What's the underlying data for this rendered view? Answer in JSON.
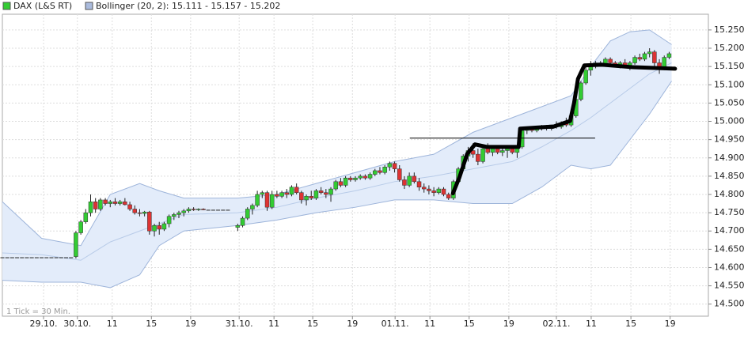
{
  "chart_data": {
    "type": "candlestick",
    "legend": [
      {
        "name": "DAX (L&S RT)",
        "color": "#33cc33"
      },
      {
        "name": "Bollinger (20, 2): 15.111 - 15.157 - 15.202",
        "color": "#aabbdd"
      }
    ],
    "note": "1 Tick = 30 Min.",
    "ylim": [
      14.467,
      15.293
    ],
    "yticks": [
      {
        "value": 14.5,
        "label": "14.500"
      },
      {
        "value": 14.55,
        "label": "14.550"
      },
      {
        "value": 14.6,
        "label": "14.600"
      },
      {
        "value": 14.65,
        "label": "14.650"
      },
      {
        "value": 14.7,
        "label": "14.700"
      },
      {
        "value": 14.75,
        "label": "14.750"
      },
      {
        "value": 14.8,
        "label": "14.800"
      },
      {
        "value": 14.85,
        "label": "14.850"
      },
      {
        "value": 14.9,
        "label": "14.900"
      },
      {
        "value": 14.95,
        "label": "14.950"
      },
      {
        "value": 15.0,
        "label": "15.000"
      },
      {
        "value": 15.05,
        "label": "15.050"
      },
      {
        "value": 15.1,
        "label": "15.100"
      },
      {
        "value": 15.15,
        "label": "15.150"
      },
      {
        "value": 15.2,
        "label": "15.200"
      },
      {
        "value": 15.25,
        "label": "15.250"
      }
    ],
    "xlim": [
      0,
      144
    ],
    "xticks": [
      {
        "value": 8.4,
        "label": "29.10."
      },
      {
        "value": 15.3,
        "label": "30.10."
      },
      {
        "value": 22.4,
        "label": "11"
      },
      {
        "value": 30.4,
        "label": "15"
      },
      {
        "value": 38.4,
        "label": "19"
      },
      {
        "value": 48.3,
        "label": "31.10."
      },
      {
        "value": 55.4,
        "label": "11"
      },
      {
        "value": 63.3,
        "label": "15"
      },
      {
        "value": 71.4,
        "label": "19"
      },
      {
        "value": 80.1,
        "label": "01.11."
      },
      {
        "value": 87.2,
        "label": "11"
      },
      {
        "value": 95.2,
        "label": "15"
      },
      {
        "value": 103.3,
        "label": "19"
      },
      {
        "value": 113,
        "label": "02.11."
      },
      {
        "value": 120.1,
        "label": "11"
      },
      {
        "value": 128.2,
        "label": "15"
      },
      {
        "value": 136.2,
        "label": "19"
      }
    ],
    "grid": true,
    "up_color": "#33cc33",
    "down_color": "#dd3333",
    "candles": {
      "x": [
        0,
        1,
        2,
        3,
        4,
        5,
        6,
        7,
        8,
        9,
        10,
        11,
        12,
        13,
        14,
        15,
        16,
        17,
        18,
        19,
        20,
        21,
        22,
        23,
        24,
        25,
        26,
        27,
        28,
        29,
        30,
        31,
        32,
        33,
        34,
        35,
        36,
        37,
        38,
        39,
        40,
        41,
        42,
        43,
        44,
        45,
        46,
        48,
        49,
        50,
        51,
        52,
        53,
        54,
        55,
        56,
        57,
        58,
        59,
        60,
        61,
        62,
        63,
        64,
        65,
        66,
        67,
        68,
        69,
        70,
        71,
        72,
        73,
        74,
        75,
        76,
        77,
        78,
        79,
        80,
        81,
        82,
        83,
        84,
        85,
        86,
        87,
        88,
        89,
        90,
        91,
        92,
        93,
        94,
        95,
        96,
        97,
        98,
        99,
        100,
        101,
        102,
        103,
        104,
        105,
        106,
        107,
        108,
        109,
        110,
        111,
        112,
        113,
        114,
        115,
        116,
        117,
        118,
        119,
        120,
        121,
        122,
        123,
        124,
        125,
        126,
        127,
        128,
        129,
        130,
        131,
        132,
        133,
        134,
        135,
        136
      ],
      "open": [
        14.628,
        14.628,
        14.628,
        14.628,
        14.628,
        14.628,
        14.628,
        14.628,
        14.628,
        14.628,
        14.628,
        14.628,
        14.628,
        14.628,
        14.628,
        14.63,
        14.695,
        14.725,
        14.75,
        14.78,
        14.76,
        14.785,
        14.775,
        14.78,
        14.775,
        14.78,
        14.772,
        14.76,
        14.75,
        14.748,
        14.752,
        14.7,
        14.715,
        14.705,
        14.72,
        14.74,
        14.745,
        14.75,
        14.755,
        14.76,
        14.758,
        14.76,
        14.758,
        14.758,
        14.758,
        14.758,
        14.758,
        14.71,
        14.715,
        14.735,
        14.76,
        14.77,
        14.8,
        14.805,
        14.765,
        14.8,
        14.795,
        14.805,
        14.8,
        14.82,
        14.805,
        14.785,
        14.795,
        14.79,
        14.81,
        14.805,
        14.8,
        14.815,
        14.835,
        14.825,
        14.845,
        14.84,
        14.845,
        14.85,
        14.845,
        14.855,
        14.865,
        14.86,
        14.875,
        14.885,
        14.87,
        14.84,
        14.825,
        14.85,
        14.835,
        14.82,
        14.815,
        14.81,
        14.805,
        14.815,
        14.8,
        14.79,
        14.835,
        14.87,
        14.905,
        14.92,
        14.91,
        14.89,
        14.925,
        14.915,
        14.925,
        14.915,
        14.92,
        14.925,
        14.915,
        14.93,
        14.975,
        14.98,
        14.975,
        14.98,
        14.985,
        14.98,
        14.99,
        14.985,
        14.995,
        14.99,
        15.015,
        15.06,
        15.105,
        15.14,
        15.155,
        15.16,
        15.155,
        15.17,
        15.16,
        15.155,
        15.16,
        15.15,
        15.16,
        15.175,
        15.17,
        15.185,
        15.19,
        15.16,
        15.145,
        15.175
      ],
      "high": [
        14.628,
        14.628,
        14.628,
        14.628,
        14.628,
        14.628,
        14.628,
        14.628,
        14.628,
        14.628,
        14.628,
        14.628,
        14.628,
        14.628,
        14.628,
        14.7,
        14.73,
        14.76,
        14.8,
        14.79,
        14.79,
        14.79,
        14.785,
        14.79,
        14.785,
        14.79,
        14.78,
        14.77,
        14.76,
        14.755,
        14.755,
        14.72,
        14.725,
        14.725,
        14.745,
        14.75,
        14.755,
        14.76,
        14.765,
        14.765,
        14.762,
        14.762,
        14.758,
        14.758,
        14.758,
        14.758,
        14.758,
        14.72,
        14.74,
        14.765,
        14.775,
        14.81,
        14.81,
        14.81,
        14.81,
        14.81,
        14.81,
        14.815,
        14.825,
        14.83,
        14.81,
        14.8,
        14.81,
        14.815,
        14.82,
        14.815,
        14.82,
        14.84,
        14.845,
        14.85,
        14.85,
        14.85,
        14.855,
        14.855,
        14.86,
        14.87,
        14.875,
        14.88,
        14.89,
        14.89,
        14.88,
        14.85,
        14.86,
        14.86,
        14.845,
        14.83,
        14.825,
        14.82,
        14.82,
        14.82,
        14.805,
        14.84,
        14.875,
        14.91,
        14.93,
        14.94,
        14.925,
        14.93,
        14.94,
        14.93,
        14.935,
        14.93,
        14.925,
        14.93,
        14.935,
        14.98,
        14.985,
        14.985,
        14.985,
        14.99,
        14.99,
        14.99,
        15.0,
        15.0,
        15.01,
        15.02,
        15.07,
        15.11,
        15.15,
        15.165,
        15.165,
        15.165,
        15.175,
        15.175,
        15.165,
        15.165,
        15.17,
        15.165,
        15.18,
        15.185,
        15.19,
        15.2,
        15.195,
        15.17,
        15.18,
        15.19
      ],
      "low": [
        14.628,
        14.628,
        14.628,
        14.628,
        14.628,
        14.628,
        14.628,
        14.628,
        14.628,
        14.628,
        14.628,
        14.628,
        14.628,
        14.628,
        14.628,
        14.625,
        14.69,
        14.72,
        14.74,
        14.75,
        14.755,
        14.77,
        14.765,
        14.77,
        14.77,
        14.77,
        14.755,
        14.745,
        14.74,
        14.74,
        14.69,
        14.685,
        14.69,
        14.7,
        14.71,
        14.73,
        14.735,
        14.74,
        14.75,
        14.755,
        14.755,
        14.757,
        14.758,
        14.758,
        14.758,
        14.758,
        14.758,
        14.7,
        14.71,
        14.73,
        14.745,
        14.765,
        14.79,
        14.755,
        14.76,
        14.79,
        14.79,
        14.79,
        14.795,
        14.8,
        14.775,
        14.77,
        14.785,
        14.785,
        14.8,
        14.79,
        14.78,
        14.81,
        14.82,
        14.82,
        14.835,
        14.835,
        14.84,
        14.84,
        14.84,
        14.85,
        14.855,
        14.855,
        14.865,
        14.86,
        14.835,
        14.815,
        14.82,
        14.83,
        14.81,
        14.805,
        14.8,
        14.795,
        14.8,
        14.795,
        14.785,
        14.785,
        14.83,
        14.865,
        14.89,
        14.9,
        14.88,
        14.885,
        14.91,
        14.905,
        14.91,
        14.905,
        14.9,
        14.91,
        14.9,
        14.925,
        14.965,
        14.97,
        14.97,
        14.975,
        14.975,
        14.975,
        14.98,
        14.98,
        14.985,
        14.985,
        15.01,
        15.055,
        15.1,
        15.125,
        15.145,
        15.15,
        15.15,
        15.155,
        15.15,
        15.145,
        15.145,
        15.14,
        15.155,
        15.165,
        15.165,
        15.175,
        15.15,
        15.13,
        15.14,
        15.17
      ],
      "close": [
        14.628,
        14.628,
        14.628,
        14.628,
        14.628,
        14.628,
        14.628,
        14.628,
        14.628,
        14.628,
        14.628,
        14.628,
        14.628,
        14.628,
        14.628,
        14.695,
        14.725,
        14.75,
        14.78,
        14.76,
        14.785,
        14.775,
        14.78,
        14.775,
        14.78,
        14.772,
        14.76,
        14.75,
        14.748,
        14.752,
        14.7,
        14.715,
        14.705,
        14.72,
        14.74,
        14.745,
        14.75,
        14.755,
        14.76,
        14.758,
        14.76,
        14.758,
        14.758,
        14.758,
        14.758,
        14.758,
        14.758,
        14.715,
        14.735,
        14.76,
        14.77,
        14.8,
        14.805,
        14.765,
        14.8,
        14.795,
        14.805,
        14.8,
        14.82,
        14.805,
        14.785,
        14.795,
        14.79,
        14.81,
        14.805,
        14.8,
        14.815,
        14.835,
        14.825,
        14.845,
        14.84,
        14.845,
        14.85,
        14.845,
        14.855,
        14.865,
        14.86,
        14.875,
        14.885,
        14.87,
        14.84,
        14.825,
        14.85,
        14.835,
        14.82,
        14.815,
        14.81,
        14.805,
        14.815,
        14.8,
        14.79,
        14.835,
        14.87,
        14.905,
        14.92,
        14.91,
        14.89,
        14.925,
        14.915,
        14.925,
        14.915,
        14.92,
        14.925,
        14.915,
        14.93,
        14.975,
        14.98,
        14.975,
        14.98,
        14.985,
        14.98,
        14.99,
        14.985,
        14.995,
        14.99,
        15.015,
        15.06,
        15.105,
        15.14,
        15.155,
        15.16,
        15.155,
        15.17,
        15.16,
        15.155,
        15.16,
        15.15,
        15.16,
        15.175,
        15.17,
        15.185,
        15.19,
        15.16,
        15.145,
        15.175,
        15.185
      ]
    },
    "bollinger": {
      "x": [
        0,
        8,
        16,
        22,
        28,
        32,
        37,
        48,
        56,
        64,
        72,
        80,
        88,
        96,
        104,
        110,
        116,
        120,
        124,
        128,
        132,
        136.5
      ],
      "upper": [
        14.78,
        14.68,
        14.66,
        14.8,
        14.83,
        14.81,
        14.79,
        14.79,
        14.8,
        14.83,
        14.86,
        14.89,
        14.91,
        14.97,
        15.01,
        15.04,
        15.07,
        15.15,
        15.22,
        15.245,
        15.25,
        15.21
      ],
      "middle": [
        14.64,
        14.635,
        14.62,
        14.67,
        14.7,
        14.72,
        14.745,
        14.75,
        14.765,
        14.79,
        14.81,
        14.835,
        14.85,
        14.87,
        14.89,
        14.93,
        14.975,
        15.01,
        15.05,
        15.09,
        15.13,
        15.16
      ],
      "lower": [
        14.565,
        14.56,
        14.56,
        14.545,
        14.58,
        14.66,
        14.7,
        14.715,
        14.73,
        14.75,
        14.765,
        14.785,
        14.785,
        14.775,
        14.775,
        14.82,
        14.88,
        14.87,
        14.88,
        14.95,
        15.02,
        15.11
      ],
      "fill": "#e3ecfa",
      "stroke": "#9db4da",
      "middle_color": "#b8cbe8"
    },
    "drawn_line": {
      "x": [
        91.9,
        93.2,
        94.8,
        96.4,
        98.8,
        105.3,
        105.6,
        112.5,
        115.8,
        116.6,
        117.4,
        118.7,
        122.2,
        128.7,
        137.2
      ],
      "values": [
        14.803,
        14.846,
        14.911,
        14.937,
        14.93,
        14.93,
        14.98,
        14.986,
        15.001,
        15.05,
        15.116,
        15.153,
        15.155,
        15.148,
        15.144
      ],
      "color": "#000000"
    },
    "level_line": {
      "x": [
        83.1,
        120.9
      ],
      "values": [
        14.954,
        14.954
      ],
      "color": "#000000"
    }
  }
}
